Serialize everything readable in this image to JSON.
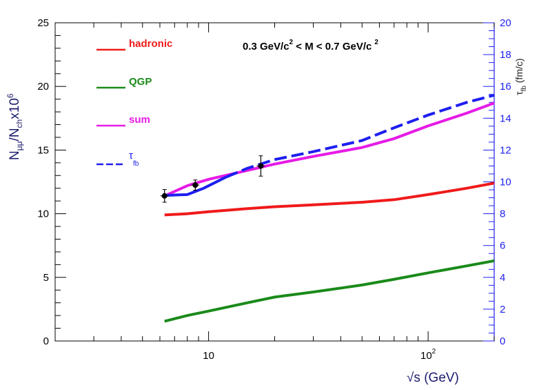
{
  "chart_data": {
    "type": "line",
    "title": "0.3 GeV/c² < M < 0.7 GeV/c²",
    "title_parts": [
      "0.3 GeV/c",
      "2",
      " < M < 0.7 GeV/c",
      "2"
    ],
    "xlabel": "√s (GeV)",
    "ylabel_parts": [
      "N",
      "μμ",
      "/N",
      "ch",
      "x10",
      "6"
    ],
    "y2label_parts": [
      "τ",
      "fb",
      " (fm/c)"
    ],
    "xscale": "log",
    "xlim": [
      2,
      200
    ],
    "ylim": [
      0,
      25
    ],
    "y2lim": [
      0,
      20
    ],
    "x_ticks": [
      {
        "value": 10,
        "label": "10"
      },
      {
        "value": 100,
        "label": "10",
        "sup": "2"
      }
    ],
    "y_ticks": [
      "0",
      "5",
      "10",
      "15",
      "20",
      "25"
    ],
    "y2_ticks": [
      "0",
      "2",
      "4",
      "6",
      "8",
      "10",
      "12",
      "14",
      "16",
      "18",
      "20"
    ],
    "legend_position": "top-left",
    "series": [
      {
        "name": "hadronic",
        "color": "#f01a1a",
        "axis": "left",
        "style": "solid",
        "points": [
          [
            6.3,
            9.9
          ],
          [
            8,
            10.0
          ],
          [
            10,
            10.15
          ],
          [
            15,
            10.4
          ],
          [
            20,
            10.55
          ],
          [
            30,
            10.7
          ],
          [
            50,
            10.9
          ],
          [
            70,
            11.1
          ],
          [
            100,
            11.5
          ],
          [
            150,
            12.0
          ],
          [
            200,
            12.4
          ]
        ]
      },
      {
        "name": "QGP",
        "color": "#1a8a1a",
        "axis": "left",
        "style": "solid",
        "points": [
          [
            6.3,
            1.55
          ],
          [
            8,
            2.0
          ],
          [
            10,
            2.35
          ],
          [
            15,
            3.0
          ],
          [
            20,
            3.45
          ],
          [
            30,
            3.85
          ],
          [
            50,
            4.4
          ],
          [
            70,
            4.85
          ],
          [
            100,
            5.35
          ],
          [
            150,
            5.9
          ],
          [
            200,
            6.3
          ]
        ]
      },
      {
        "name": "sum",
        "color": "#e61ae6",
        "axis": "left",
        "style": "solid",
        "points": [
          [
            6.3,
            11.4
          ],
          [
            8,
            12.2
          ],
          [
            10,
            12.7
          ],
          [
            15,
            13.4
          ],
          [
            20,
            13.9
          ],
          [
            30,
            14.5
          ],
          [
            50,
            15.2
          ],
          [
            70,
            15.9
          ],
          [
            100,
            16.9
          ],
          [
            150,
            17.9
          ],
          [
            200,
            18.7
          ]
        ]
      },
      {
        "name": "τ",
        "legend_sub": "fb",
        "color": "#1e1ef0",
        "axis": "right",
        "style": "solid_then_dashed",
        "dash_from_x": 12,
        "points": [
          [
            6.3,
            9.15
          ],
          [
            8,
            9.2
          ],
          [
            9.5,
            9.6
          ],
          [
            12,
            10.3
          ],
          [
            15,
            10.85
          ],
          [
            20,
            11.4
          ],
          [
            30,
            11.9
          ],
          [
            50,
            12.6
          ],
          [
            70,
            13.4
          ],
          [
            100,
            14.2
          ],
          [
            150,
            15.0
          ],
          [
            200,
            15.45
          ]
        ]
      }
    ],
    "data_points": [
      {
        "x": 6.3,
        "y": 11.4,
        "err": 0.5
      },
      {
        "x": 8.7,
        "y": 12.25,
        "err": 0.4
      },
      {
        "x": 17.3,
        "y": 13.75,
        "err": 0.8
      }
    ]
  }
}
